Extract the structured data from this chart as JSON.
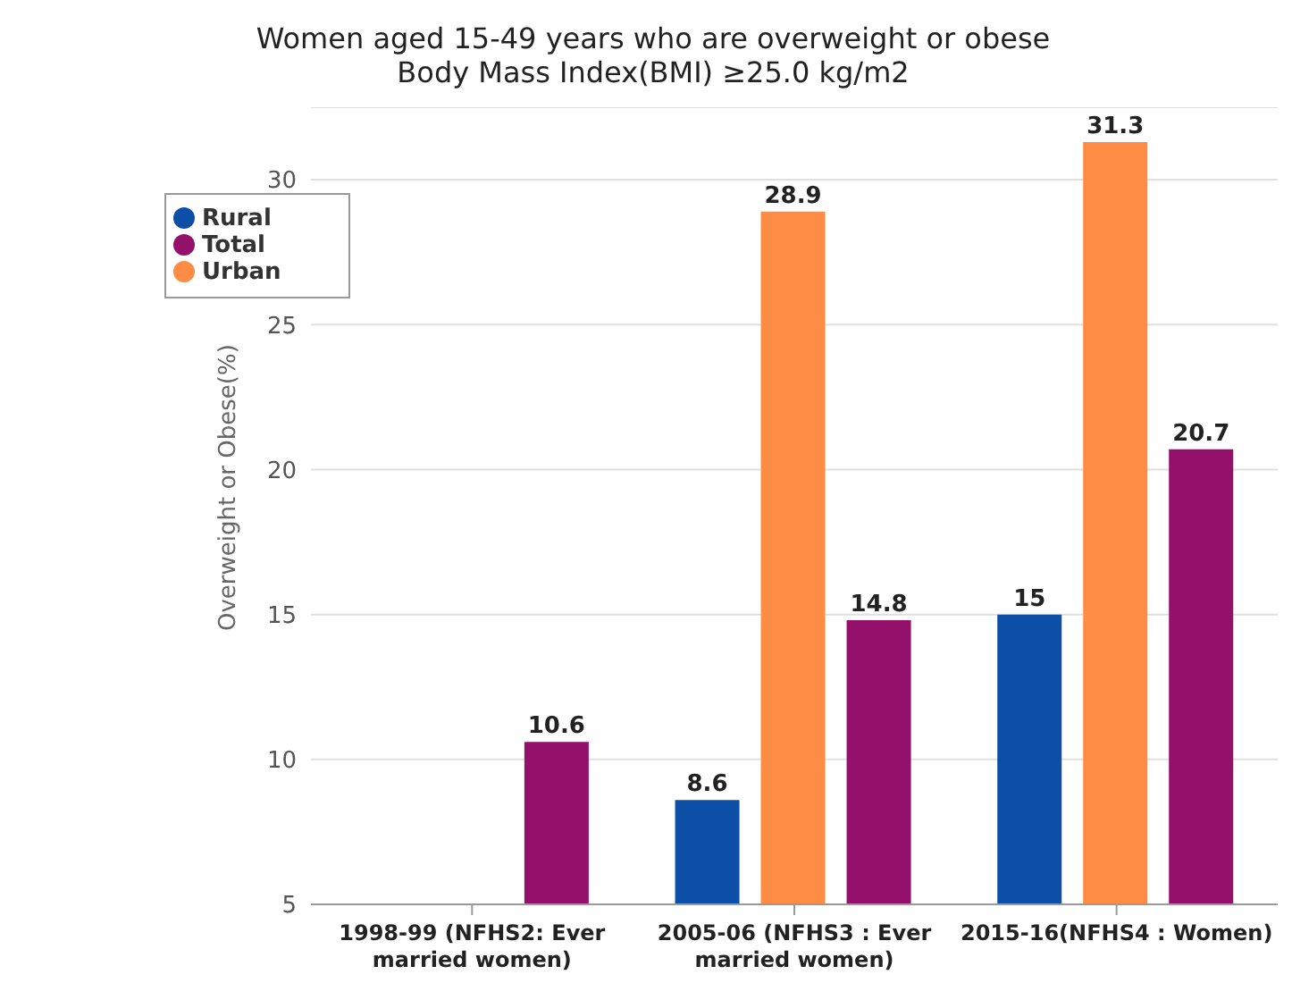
{
  "chart_data": {
    "type": "bar",
    "title": "Women aged 15-49 years who are overweight or obese",
    "subtitle": "Body Mass Index(BMI) ≥25.0 kg/m2",
    "ylabel": "Overweight or Obese(%)",
    "categories": [
      "1998-99 (NFHS2: Ever married women)",
      "2005-06 (NFHS3 : Ever married women)",
      "2015-16(NFHS4 : Women)"
    ],
    "series": [
      {
        "name": "Rural",
        "color": "#0d4ea6",
        "values": [
          null,
          8.6,
          15
        ]
      },
      {
        "name": "Urban",
        "color": "#ff8c45",
        "values": [
          null,
          28.9,
          31.3
        ]
      },
      {
        "name": "Total",
        "color": "#93106b",
        "values": [
          10.6,
          14.8,
          20.7
        ]
      }
    ],
    "ylim": [
      5,
      32.5
    ],
    "yticks": [
      5,
      10,
      15,
      20,
      25,
      30
    ],
    "grid": "y",
    "legend": "top left",
    "data_labels": true
  }
}
